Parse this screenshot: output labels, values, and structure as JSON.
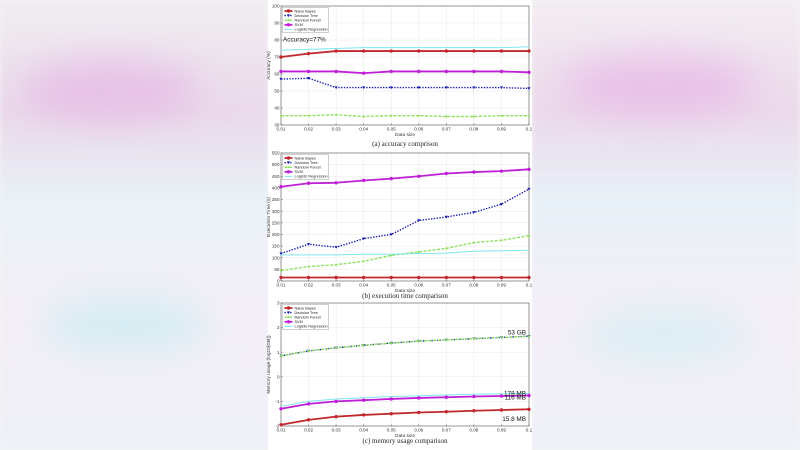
{
  "legend_names": [
    "Naive Bayes",
    "Decision Tree",
    "Random Forest",
    "SVM",
    "Logistic Regression"
  ],
  "colors": {
    "naive_bayes": "#c0282d",
    "decision_tree": "#1b1eab",
    "random_forest": "#8fe15f",
    "svm": "#bf1fd6",
    "logistic_regression": "#7de6ee"
  },
  "chart_data": [
    {
      "type": "line",
      "caption": "(a) accuracy comprison",
      "xlabel": "Data size",
      "ylabel": "Accuracy (%)",
      "x": [
        0.01,
        0.02,
        0.03,
        0.04,
        0.05,
        0.06,
        0.07,
        0.08,
        0.09,
        0.1
      ],
      "xlim": [
        0.01,
        0.1
      ],
      "ylim": [
        30,
        100
      ],
      "yticks": [
        30,
        40,
        50,
        60,
        70,
        80,
        90,
        100
      ],
      "legend_position": "top-left",
      "grid": true,
      "annotation": {
        "text": "Accuracy=77%",
        "x": 0.01,
        "y": 79
      },
      "series": [
        {
          "name": "Naive Bayes",
          "values": [
            70,
            72,
            73.5,
            73.5,
            73.5,
            73.5,
            73.5,
            73.5,
            73.5,
            73.5
          ]
        },
        {
          "name": "Decision Tree",
          "values": [
            57,
            57.5,
            52,
            52,
            52,
            52,
            52,
            52,
            52,
            51.5
          ]
        },
        {
          "name": "Random Forest",
          "values": [
            35.5,
            35.5,
            36,
            35,
            35.5,
            35.5,
            35,
            35,
            35.5,
            35.5
          ]
        },
        {
          "name": "SVM",
          "values": [
            61.5,
            61.5,
            61.5,
            60.5,
            61.5,
            61.5,
            61.5,
            61.5,
            61.5,
            61
          ]
        },
        {
          "name": "Logistic Regression",
          "values": [
            74,
            74.5,
            75,
            75.5,
            75.5,
            75.5,
            75.5,
            75.5,
            75.5,
            76
          ]
        }
      ]
    },
    {
      "type": "line",
      "caption": "(b) execution time comparison",
      "xlabel": "Data size",
      "ylabel": "Execution Time (s)",
      "x": [
        0.01,
        0.02,
        0.03,
        0.04,
        0.05,
        0.06,
        0.07,
        0.08,
        0.09,
        0.1
      ],
      "xlim": [
        0.01,
        0.1
      ],
      "ylim": [
        0,
        550
      ],
      "yticks": [
        0,
        50,
        100,
        150,
        200,
        250,
        300,
        350,
        400,
        450,
        500,
        550
      ],
      "legend_position": "top-left",
      "grid": true,
      "series": [
        {
          "name": "Naive Bayes",
          "values": [
            15,
            15,
            15,
            15,
            15,
            15,
            15,
            15,
            15,
            15
          ]
        },
        {
          "name": "Decision Tree",
          "values": [
            118,
            158,
            145,
            182,
            200,
            260,
            275,
            295,
            330,
            395
          ]
        },
        {
          "name": "Random Forest",
          "values": [
            45,
            62,
            70,
            85,
            110,
            125,
            140,
            165,
            175,
            195
          ]
        },
        {
          "name": "SVM",
          "values": [
            405,
            420,
            422,
            432,
            440,
            450,
            462,
            468,
            472,
            480
          ]
        },
        {
          "name": "Logistic Regression",
          "values": [
            112,
            112,
            112,
            115,
            115,
            118,
            120,
            128,
            130,
            132
          ]
        }
      ]
    },
    {
      "type": "line",
      "caption": "(c) memory usage comparison",
      "xlabel": "Data size",
      "ylabel": "Memory usage (log10(GB))",
      "x": [
        0.01,
        0.02,
        0.03,
        0.04,
        0.05,
        0.06,
        0.07,
        0.08,
        0.09,
        0.1
      ],
      "xlim": [
        0.01,
        0.1
      ],
      "ylim": [
        -2,
        3
      ],
      "yticks": [
        -2,
        -1,
        0,
        1,
        2,
        3
      ],
      "legend_position": "top-left",
      "grid": true,
      "annotations": [
        {
          "text": "53 GB",
          "x": 0.1,
          "y": 1.72
        },
        {
          "text": "178 MB",
          "x": 0.1,
          "y": -0.75
        },
        {
          "text": "116 MB",
          "x": 0.1,
          "y": -0.93
        },
        {
          "text": "15.8 MB",
          "x": 0.1,
          "y": -1.8
        }
      ],
      "series": [
        {
          "name": "Naive Bayes",
          "values": [
            -1.95,
            -1.75,
            -1.62,
            -1.55,
            -1.5,
            -1.45,
            -1.42,
            -1.38,
            -1.35,
            -1.32
          ]
        },
        {
          "name": "Decision Tree",
          "values": [
            0.85,
            1.05,
            1.18,
            1.28,
            1.37,
            1.45,
            1.5,
            1.55,
            1.6,
            1.65
          ]
        },
        {
          "name": "Random Forest",
          "values": [
            0.85,
            1.05,
            1.18,
            1.28,
            1.37,
            1.45,
            1.5,
            1.55,
            1.6,
            1.65
          ]
        },
        {
          "name": "SVM",
          "values": [
            -1.3,
            -1.1,
            -1.0,
            -0.95,
            -0.9,
            -0.86,
            -0.83,
            -0.8,
            -0.78,
            -0.76
          ]
        },
        {
          "name": "Logistic Regression",
          "values": [
            -1.2,
            -1.0,
            -0.9,
            -0.85,
            -0.8,
            -0.77,
            -0.74,
            -0.71,
            -0.69,
            -0.67
          ]
        }
      ]
    }
  ]
}
